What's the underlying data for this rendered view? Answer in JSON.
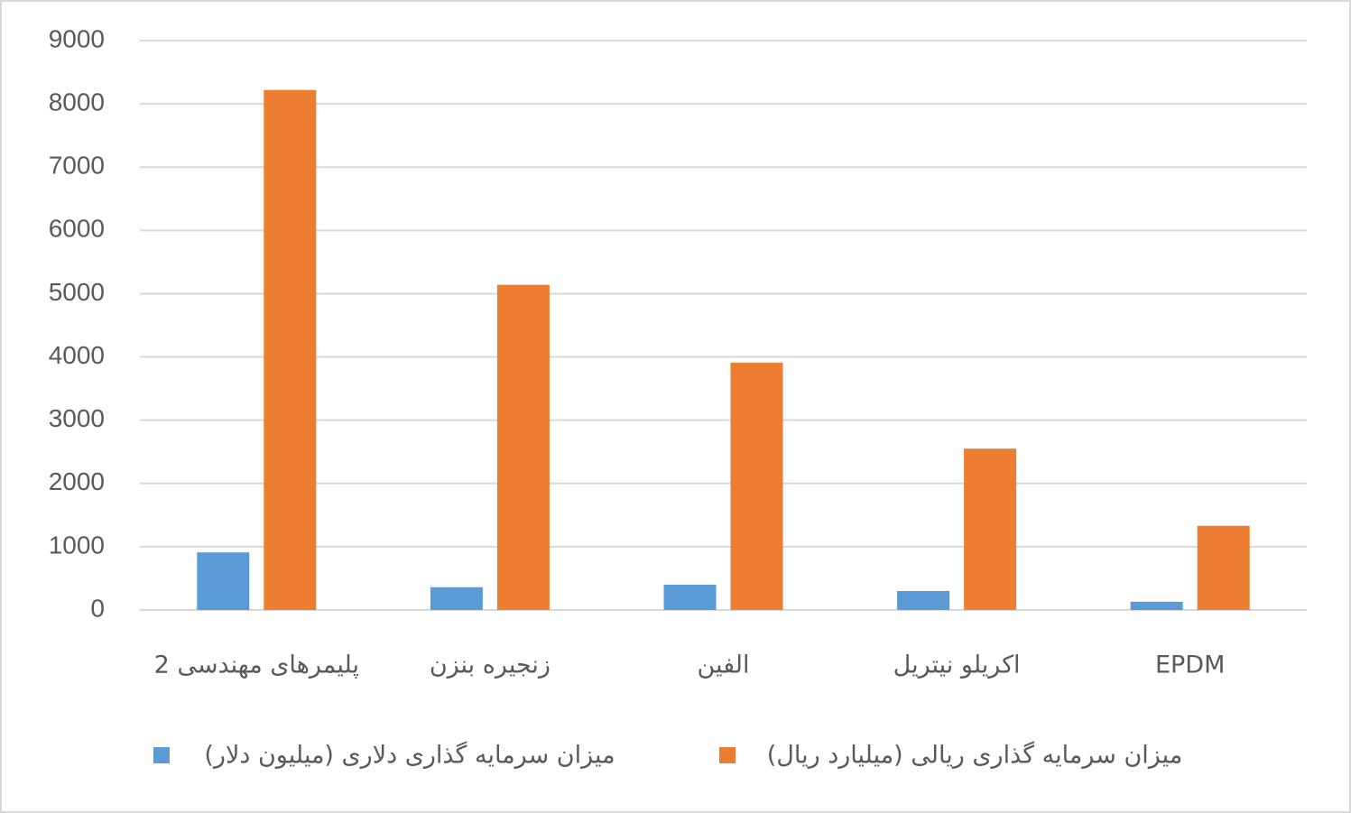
{
  "chart_data": {
    "type": "bar",
    "categories": [
      "پلیمرهای مهندسی 2",
      "زنجیره بنزن",
      "الفین",
      "اکریلو نیتریل",
      "EPDM"
    ],
    "series": [
      {
        "name": "میزان سرمایه گذاری دلاری (میلیون دلار)",
        "color": "#5b9bd5",
        "values": [
          910,
          360,
          400,
          300,
          130
        ]
      },
      {
        "name": "میزان سرمایه گذاری ریالی (میلیارد ریال)",
        "color": "#ed7d31",
        "values": [
          8220,
          5140,
          3910,
          2550,
          1330
        ]
      }
    ],
    "ylim": [
      0,
      9000
    ],
    "yticks": [
      0,
      1000,
      2000,
      3000,
      4000,
      5000,
      6000,
      7000,
      8000,
      9000
    ],
    "grid": true,
    "legend": "bottom"
  }
}
